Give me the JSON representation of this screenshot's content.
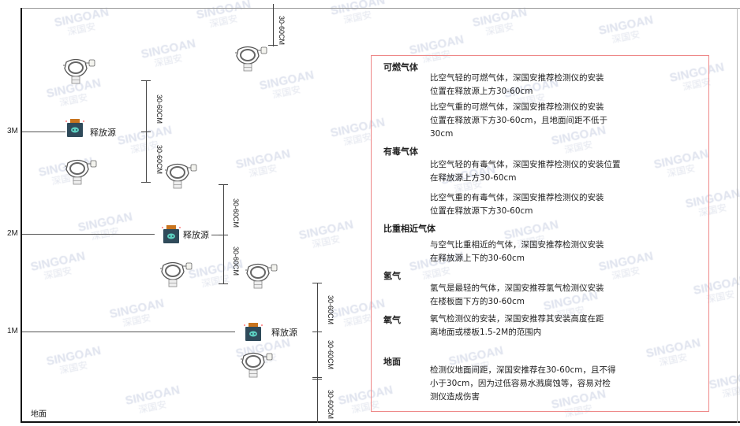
{
  "watermark": {
    "brand": "SINGOAN",
    "cn": "深国安"
  },
  "levels": [
    "3M",
    "2M",
    "1M"
  ],
  "floor_label": "地面",
  "source_label": "释放源",
  "dimension_label": "30-60CM",
  "colors": {
    "border": "#e88888",
    "source_body": "#2f4a5a",
    "source_top": "#c8741e",
    "source_face": "#5ccfc0"
  },
  "panel": {
    "sections": [
      {
        "title": "可燃气体",
        "paragraphs": [
          [
            "比空气轻的可燃气体，深国安推荐检测仪的安装",
            "位置在释放源上方30-60cm"
          ],
          [
            "比空气重的可燃气体，深国安推荐检测仪的安装",
            "位置在释放源下方30-60cm，且地面间距不低于",
            "30cm"
          ]
        ]
      },
      {
        "title": "有毒气体",
        "paragraphs": [
          [
            "比空气轻的有毒气体，深国安推荐检测仪的安装位置",
            "在释放源上方30-60cm"
          ],
          [
            "比空气重的有毒气体，深国安推荐检测仪的安装",
            "位置在释放源下方30-60cm"
          ]
        ]
      },
      {
        "title": "比重相近气体",
        "paragraphs": [
          [
            "与空气比重相近的气体，深国安推荐检测仪安装",
            "在释放源上下的30-60cm"
          ]
        ]
      },
      {
        "title": "氢气",
        "paragraphs": [
          [
            "氢气是最轻的气体，深国安推荐氢气检测仪安装",
            "在楼板面下方的30-60cm"
          ]
        ]
      },
      {
        "title": "氧气",
        "paragraphs": [
          [
            "氧气检测仪的安装，深国安推荐其安装高度在距",
            "离地面或楼板1.5-2M的范围内"
          ]
        ]
      },
      {
        "title": "地面",
        "paragraphs": [
          [
            "检测仪地面间距，深国安推荐在30-60cm，且不得",
            "小于30cm，因为过低容易水溅腐蚀等，容易对检",
            "测仪造成伤害"
          ]
        ]
      }
    ]
  }
}
